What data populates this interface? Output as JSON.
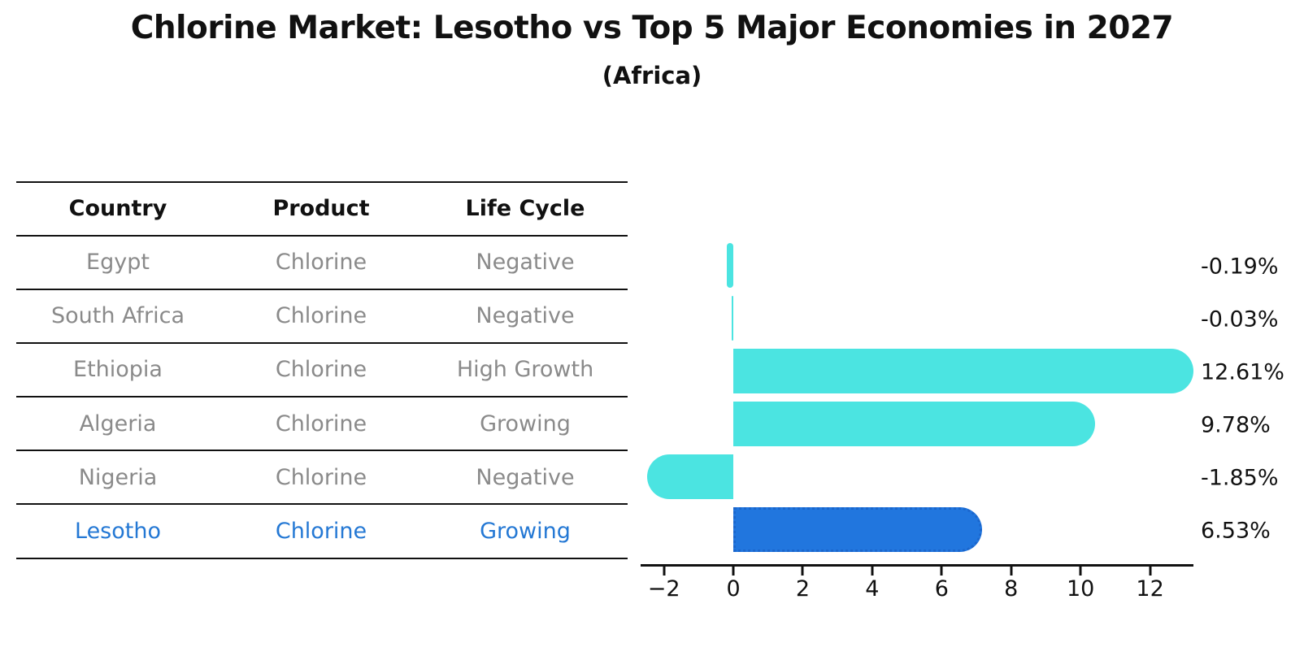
{
  "header": {
    "title": "Chlorine Market: Lesotho vs Top 5 Major Economies in 2027",
    "subtitle": "(Africa)"
  },
  "table": {
    "columns": [
      "Country",
      "Product",
      "Life Cycle"
    ],
    "rows": [
      {
        "country": "Egypt",
        "product": "Chlorine",
        "life_cycle": "Negative"
      },
      {
        "country": "South Africa",
        "product": "Chlorine",
        "life_cycle": "Negative"
      },
      {
        "country": "Ethiopia",
        "product": "Chlorine",
        "life_cycle": "High Growth"
      },
      {
        "country": "Algeria",
        "product": "Chlorine",
        "life_cycle": "Growing"
      },
      {
        "country": "Nigeria",
        "product": "Chlorine",
        "life_cycle": "Negative"
      },
      {
        "country": "Lesotho",
        "product": "Chlorine",
        "life_cycle": "Growing"
      }
    ],
    "highlight_row": "Lesotho"
  },
  "chart_data": {
    "type": "bar",
    "orientation": "horizontal",
    "title": "Chlorine Market: Lesotho vs Top 5 Major Economies in 2027",
    "subtitle": "(Africa)",
    "categories": [
      "Egypt",
      "South Africa",
      "Ethiopia",
      "Algeria",
      "Nigeria",
      "Lesotho"
    ],
    "values": [
      -0.19,
      -0.03,
      12.61,
      9.78,
      -1.85,
      6.53
    ],
    "value_labels": [
      "-0.19%",
      "-0.03%",
      "12.61%",
      "9.78%",
      "-1.85%",
      "6.53%"
    ],
    "unit": "percent CAGR",
    "x_ticks": [
      -2,
      0,
      2,
      4,
      6,
      8,
      10,
      12
    ],
    "x_tick_labels": [
      "−2",
      "0",
      "2",
      "4",
      "6",
      "8",
      "10",
      "12"
    ],
    "xlim": [
      -2.67,
      13.25
    ],
    "grid": false,
    "legend": false,
    "highlight_index": 5,
    "colors": {
      "bar": "#4BE4E1",
      "highlight_bar": "#2176DE",
      "highlight_border": "#1B66CC",
      "highlight_text": "#2478D4",
      "row_text": "#8A8A8A",
      "header_text": "#111111",
      "axis": "#111111",
      "value_text": "#111111"
    }
  }
}
